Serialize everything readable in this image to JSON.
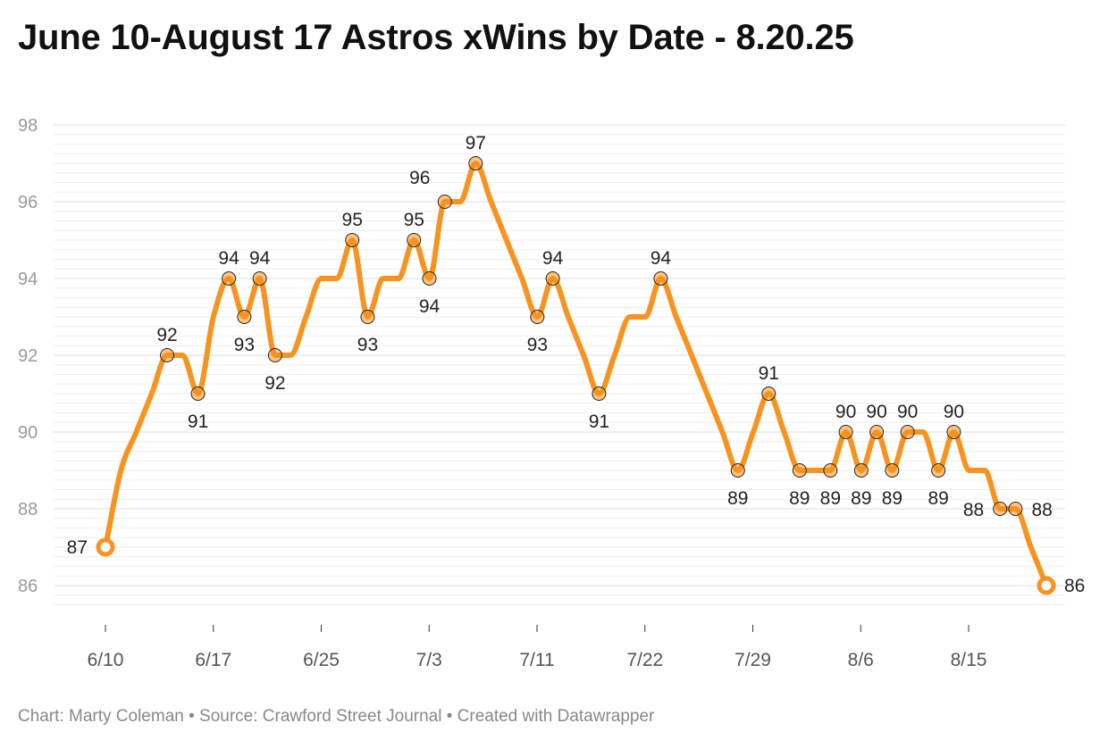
{
  "header": {
    "title": "June 10-August 17 Astros xWins by Date - 8.20.25"
  },
  "footer": {
    "credit": "Chart: Marty Coleman • Source: Crawford Street Journal • Created with Datawrapper"
  },
  "colors": {
    "line": "#F7931E",
    "marker_stroke": "#222222",
    "grid": "#e6e6e6",
    "tick_text": "#9a9a9a"
  },
  "chart_data": {
    "type": "line",
    "title": "June 10-August 17 Astros xWins by Date - 8.20.25",
    "xlabel": "",
    "ylabel": "",
    "ylim": [
      85,
      98
    ],
    "yticks": [
      86,
      88,
      90,
      92,
      94,
      96,
      98
    ],
    "xticks": [
      "6/10",
      "6/17",
      "6/25",
      "7/3",
      "7/11",
      "7/22",
      "7/29",
      "8/6",
      "8/15"
    ],
    "grid": "horizontal",
    "legend": "none",
    "series": [
      {
        "values": [
          87,
          89,
          90,
          91,
          92,
          92,
          91,
          93,
          94,
          93,
          94,
          92,
          92,
          93,
          94,
          94,
          95,
          93,
          94,
          94,
          95,
          94,
          96,
          96,
          97,
          96,
          95,
          94,
          93,
          94,
          93,
          92,
          91,
          92,
          93,
          93,
          94,
          93,
          92,
          91,
          90,
          89,
          90,
          91,
          90,
          89,
          89,
          89,
          90,
          89,
          90,
          89,
          90,
          90,
          89,
          90,
          89,
          89,
          88,
          88,
          87,
          86
        ]
      }
    ],
    "data_labels": [
      {
        "index": 0,
        "text": "87"
      },
      {
        "index": 4,
        "text": "92"
      },
      {
        "index": 6,
        "text": "91"
      },
      {
        "index": 8,
        "text": "94"
      },
      {
        "index": 9,
        "text": "93"
      },
      {
        "index": 10,
        "text": "94"
      },
      {
        "index": 11,
        "text": "92"
      },
      {
        "index": 16,
        "text": "95"
      },
      {
        "index": 17,
        "text": "93"
      },
      {
        "index": 20,
        "text": "95"
      },
      {
        "index": 21,
        "text": "94"
      },
      {
        "index": 22,
        "text": "96"
      },
      {
        "index": 24,
        "text": "97"
      },
      {
        "index": 28,
        "text": "93"
      },
      {
        "index": 29,
        "text": "94"
      },
      {
        "index": 32,
        "text": "91"
      },
      {
        "index": 36,
        "text": "94"
      },
      {
        "index": 41,
        "text": "89"
      },
      {
        "index": 43,
        "text": "91"
      },
      {
        "index": 45,
        "text": "89"
      },
      {
        "index": 47,
        "text": "89"
      },
      {
        "index": 48,
        "text": "90"
      },
      {
        "index": 49,
        "text": "89"
      },
      {
        "index": 50,
        "text": "90"
      },
      {
        "index": 51,
        "text": "89"
      },
      {
        "index": 52,
        "text": "90"
      },
      {
        "index": 54,
        "text": "89"
      },
      {
        "index": 55,
        "text": "90"
      },
      {
        "index": 58,
        "text": "88"
      },
      {
        "index": 59,
        "text": "88"
      },
      {
        "index": 61,
        "text": "86"
      }
    ]
  }
}
